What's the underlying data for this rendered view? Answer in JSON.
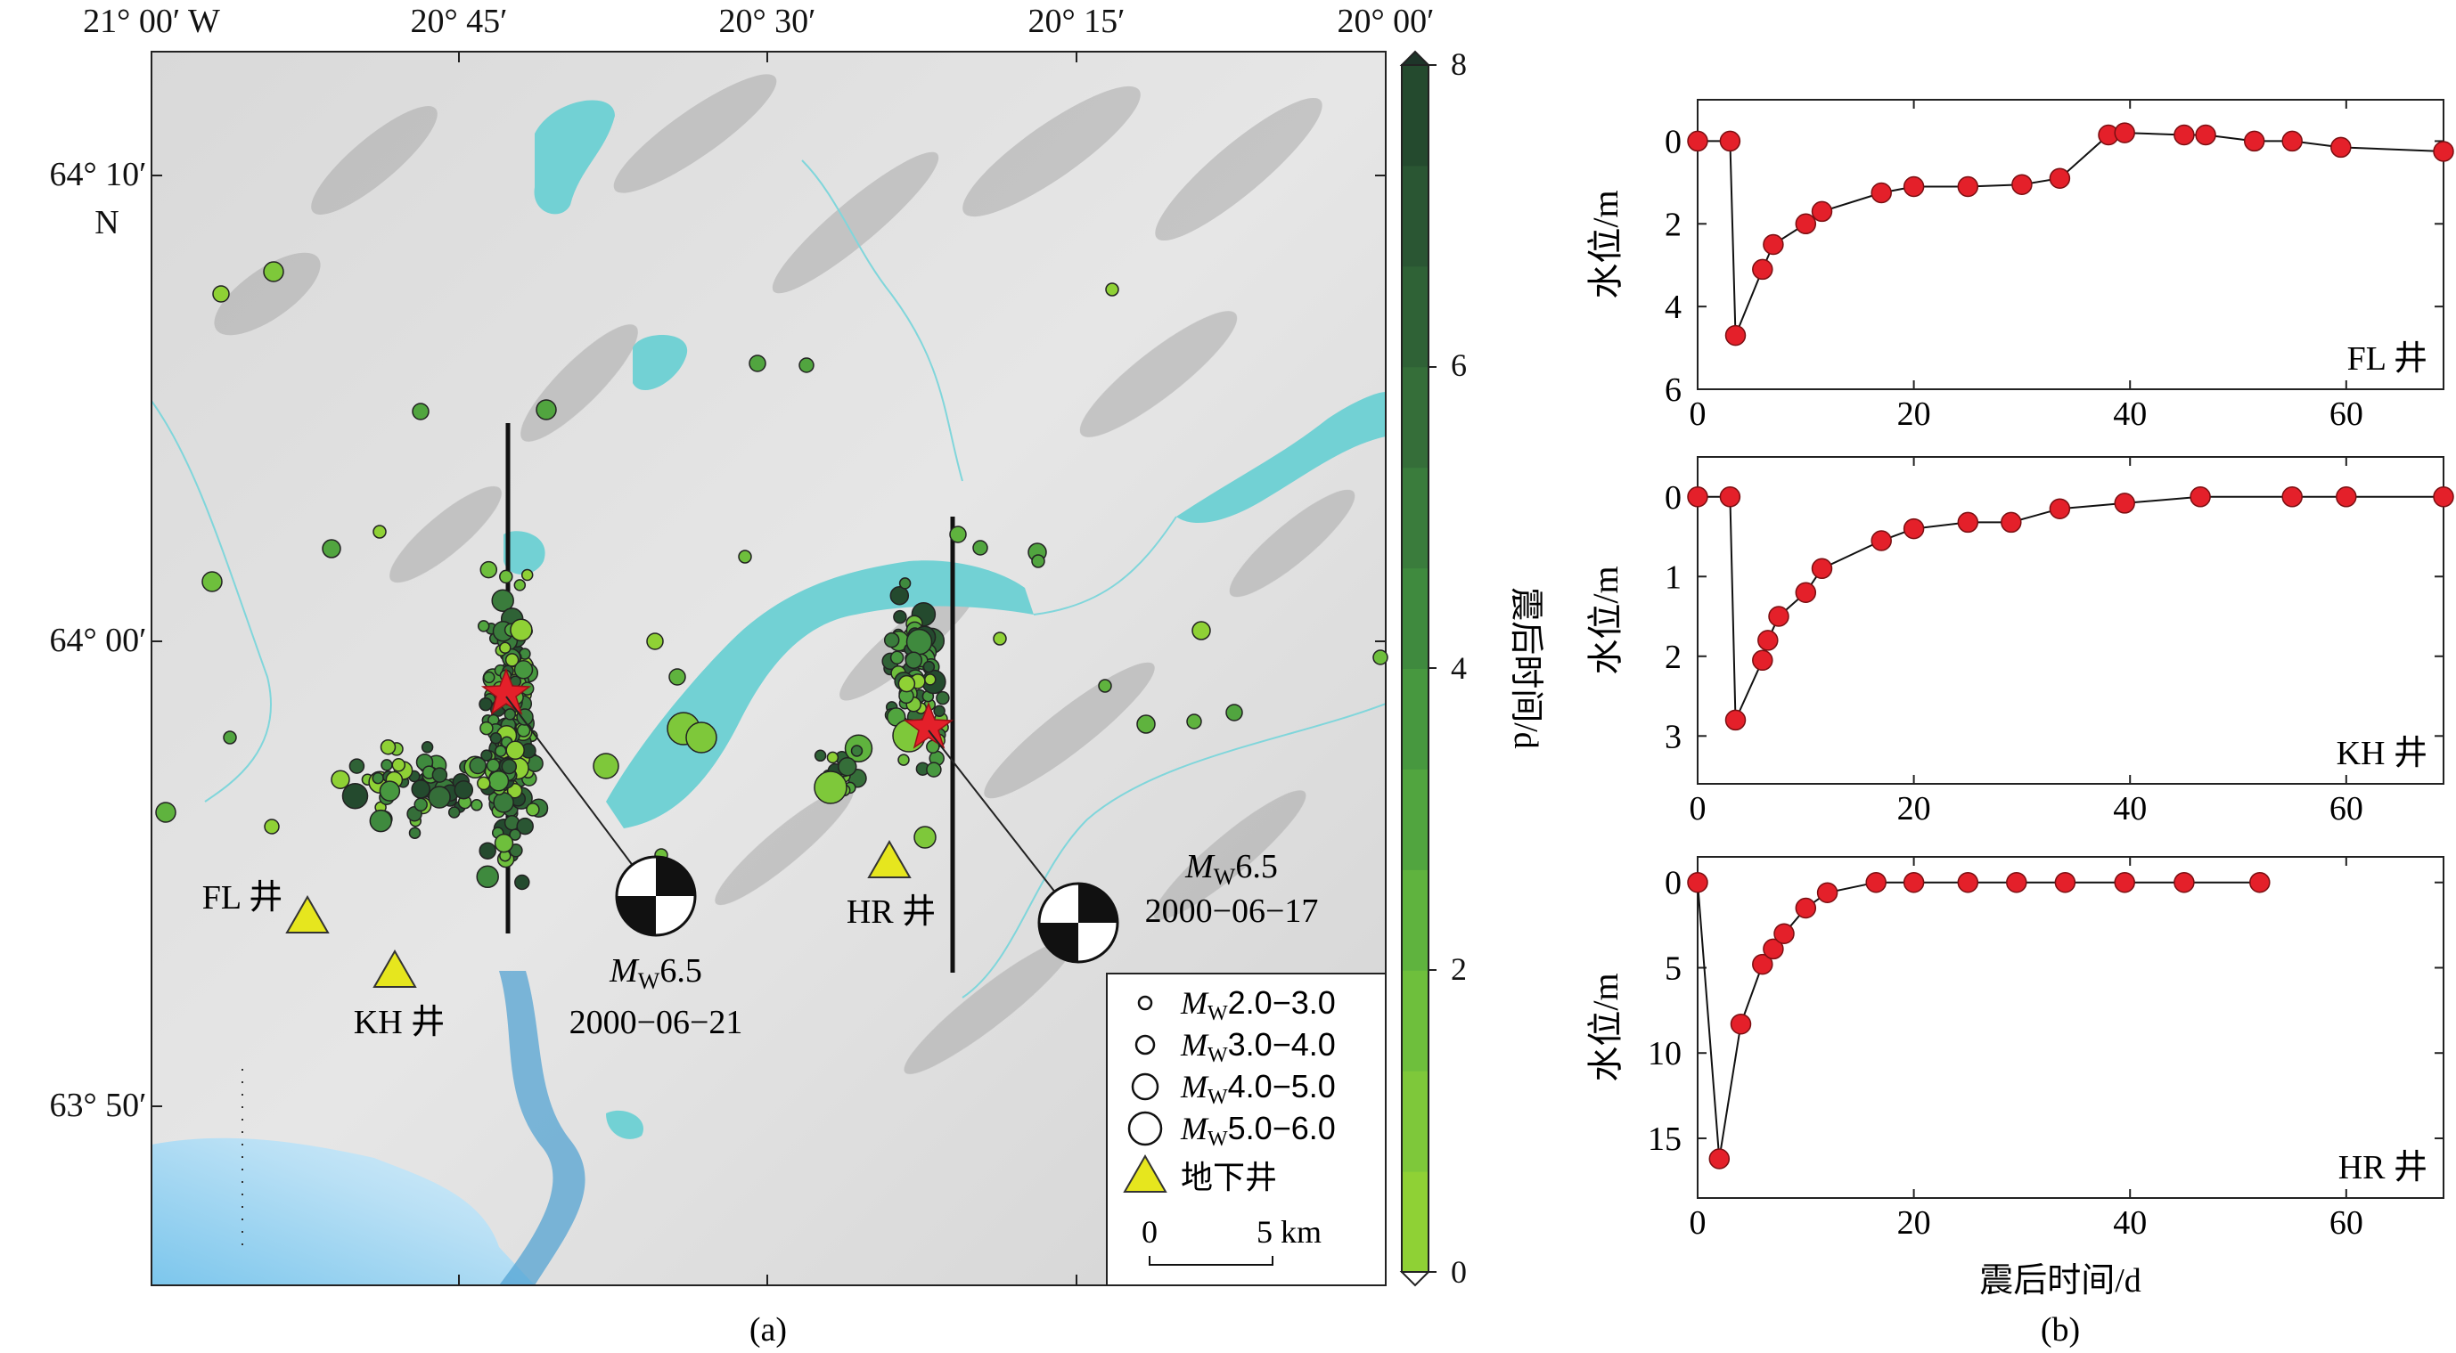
{
  "panel_a": {
    "caption": "(a)",
    "top_ticks": [
      "21° 00′ W",
      "20° 45′",
      "20° 30′",
      "20° 15′",
      "20° 00′"
    ],
    "left_ticks": [
      "64° 10′",
      "64° 00′",
      "63° 50′"
    ],
    "north_label": "N",
    "colorbar": {
      "title": "震后时间/d",
      "ticks": [
        "8",
        "6",
        "4",
        "2",
        "0"
      ],
      "min": 0,
      "max": 8,
      "colors": [
        "#8fd135",
        "#7ec83a",
        "#6ebf3c",
        "#5fb33e",
        "#51a53f",
        "#47983f",
        "#3f8a3e",
        "#3a7c3c",
        "#356e39",
        "#2f6236",
        "#2a5633",
        "#244a2e"
      ]
    },
    "events": [
      {
        "magnitude_label": "M",
        "sub": "W",
        "mag": "6.5",
        "date": "2000−06−21"
      },
      {
        "magnitude_label": "M",
        "sub": "W",
        "mag": "6.5",
        "date": "2000−06−17"
      }
    ],
    "wells": [
      "FL 井",
      "KH 井",
      "HR 井"
    ],
    "legend": {
      "sizes": [
        {
          "m": "M",
          "sub": "W",
          "range": "2.0−3.0"
        },
        {
          "m": "M",
          "sub": "W",
          "range": "3.0−4.0"
        },
        {
          "m": "M",
          "sub": "W",
          "range": "4.0−5.0"
        },
        {
          "m": "M",
          "sub": "W",
          "range": "5.0−6.0"
        }
      ],
      "well_label": "地下井",
      "scale_zero": "0",
      "scale_five": "5 km"
    }
  },
  "panel_b": {
    "caption": "(b)",
    "xlabel": "震后时间/d",
    "ylabel": "水位/m"
  },
  "chart_data": [
    {
      "type": "line",
      "name": "FL 井",
      "xlim": [
        0,
        69
      ],
      "ylim": [
        6,
        -1
      ],
      "y_inverted": true,
      "xticks": [
        0,
        20,
        40,
        60
      ],
      "yticks": [
        0,
        2,
        4,
        6
      ],
      "x": [
        0,
        3,
        3.5,
        6,
        7,
        10,
        11.5,
        17,
        20,
        25,
        30,
        33.5,
        38,
        39.5,
        45,
        47,
        51.5,
        55,
        59.5,
        69
      ],
      "y": [
        0,
        0,
        4.7,
        3.1,
        2.5,
        2.0,
        1.7,
        1.25,
        1.1,
        1.1,
        1.05,
        0.9,
        -0.15,
        -0.2,
        -0.15,
        -0.15,
        0.0,
        0.0,
        0.15,
        0.25
      ]
    },
    {
      "type": "line",
      "name": "KH 井",
      "xlim": [
        0,
        69
      ],
      "ylim": [
        3.6,
        -0.5
      ],
      "y_inverted": true,
      "xticks": [
        0,
        20,
        40,
        60
      ],
      "yticks": [
        0,
        1,
        2,
        3
      ],
      "x": [
        0,
        3,
        3.5,
        6,
        6.5,
        7.5,
        10,
        11.5,
        17,
        20,
        25,
        29,
        33.5,
        39.5,
        46.5,
        55,
        60,
        69
      ],
      "y": [
        0,
        0,
        2.8,
        2.05,
        1.8,
        1.5,
        1.2,
        0.9,
        0.55,
        0.4,
        0.32,
        0.32,
        0.15,
        0.08,
        0,
        0,
        0,
        0
      ]
    },
    {
      "type": "line",
      "name": "HR 井",
      "xlim": [
        0,
        69
      ],
      "ylim": [
        18.5,
        -1.5
      ],
      "y_inverted": true,
      "xticks": [
        0,
        20,
        40,
        60
      ],
      "yticks": [
        0,
        5,
        10,
        15
      ],
      "x": [
        0,
        2,
        4,
        6,
        7,
        8,
        10,
        12,
        16.5,
        20,
        25,
        29.5,
        34,
        39.5,
        45,
        52
      ],
      "y": [
        0,
        16.2,
        8.3,
        4.8,
        3.9,
        3.0,
        1.5,
        0.6,
        0,
        0,
        0,
        0,
        0,
        0,
        0,
        0
      ]
    }
  ]
}
